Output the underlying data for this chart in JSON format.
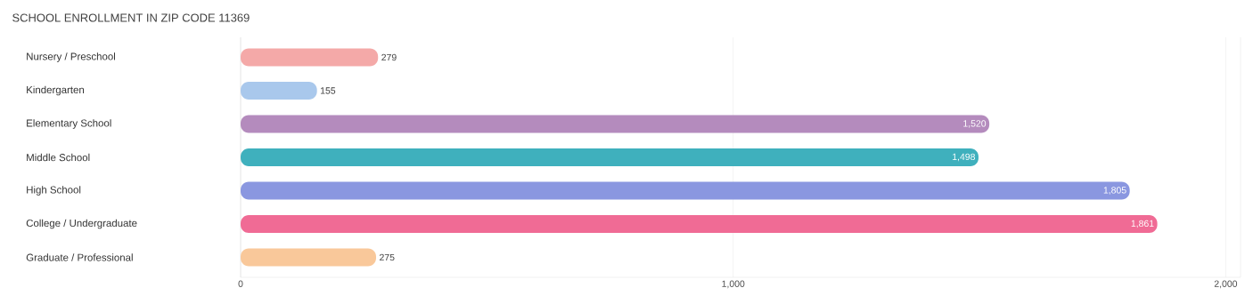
{
  "chart_data": {
    "type": "bar",
    "orientation": "horizontal",
    "title": "SCHOOL ENROLLMENT IN ZIP CODE 11369",
    "categories": [
      "Nursery / Preschool",
      "Kindergarten",
      "Elementary School",
      "Middle School",
      "High School",
      "College / Undergraduate",
      "Graduate / Professional"
    ],
    "values": [
      279,
      155,
      1520,
      1498,
      1805,
      1861,
      275
    ],
    "value_labels": [
      "279",
      "155",
      "1,520",
      "1,498",
      "1,805",
      "1,861",
      "275"
    ],
    "colors": [
      "#f4a9a8",
      "#a9c8ec",
      "#b48bbd",
      "#3fb0bd",
      "#8a97e0",
      "#f06b95",
      "#f9c89a"
    ],
    "xlim": [
      0,
      2030
    ],
    "xticks": [
      {
        "value": 0,
        "label": "0"
      },
      {
        "value": 1000,
        "label": "1,000"
      },
      {
        "value": 2000,
        "label": "2,000"
      }
    ],
    "grid": "x"
  }
}
